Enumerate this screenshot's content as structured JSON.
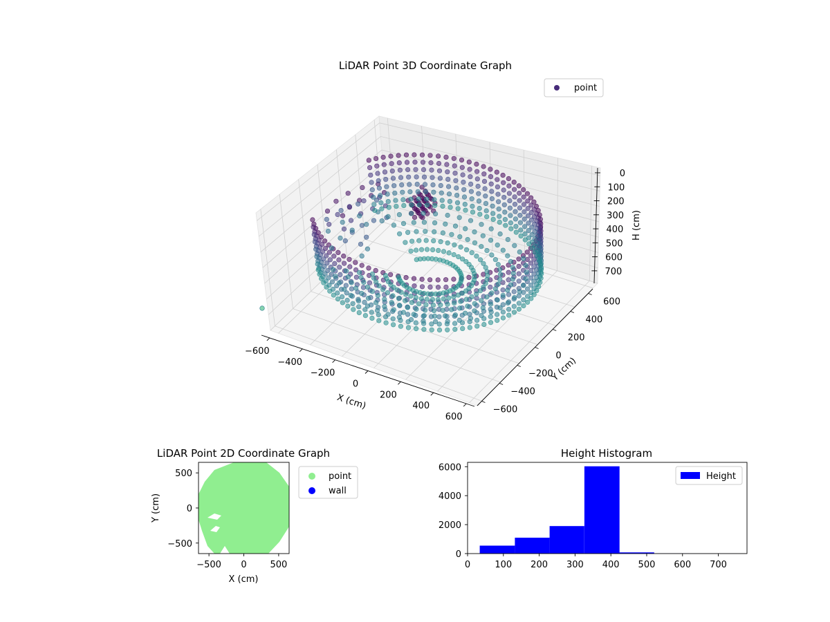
{
  "chart_data": [
    {
      "id": "lidar-3d",
      "type": "scatter",
      "title": "LiDAR Point 3D Coordinate Graph",
      "xlabel": "X (cm)",
      "ylabel": "Y (cm)",
      "zlabel": "H (cm)",
      "xlim": [
        -650,
        650
      ],
      "ylim": [
        -650,
        650
      ],
      "zlim": [
        0,
        750
      ],
      "z_inverted": true,
      "x_ticks": [
        "−600",
        "−400",
        "−200",
        "0",
        "200",
        "400",
        "600"
      ],
      "y_ticks": [
        "−600",
        "−400",
        "−200",
        "0",
        "200",
        "400",
        "600"
      ],
      "z_ticks": [
        "0",
        "100",
        "200",
        "300",
        "400",
        "500",
        "600",
        "700"
      ],
      "x_tick_values": [
        -600,
        -400,
        -200,
        0,
        200,
        400,
        600
      ],
      "y_tick_values": [
        -600,
        -400,
        -200,
        0,
        200,
        400,
        600
      ],
      "z_tick_values": [
        0,
        100,
        200,
        300,
        400,
        500,
        600,
        700
      ],
      "legend": [
        "point"
      ],
      "legend_loc": "upper-right",
      "grid": true,
      "colormap": "viridis",
      "series": [
        {
          "name": "point",
          "shape": "ring",
          "radius": 600,
          "height_range": [
            100,
            450
          ],
          "gap_on_left": true
        }
      ]
    },
    {
      "id": "lidar-2d",
      "type": "scatter",
      "title": "LiDAR Point 2D Coordinate Graph",
      "xlabel": "X (cm)",
      "ylabel": "Y (cm)",
      "xlim": [
        -650,
        650
      ],
      "ylim": [
        -650,
        650
      ],
      "x_ticks": [
        "−500",
        "0",
        "500"
      ],
      "y_ticks": [
        "500",
        "0",
        "−500"
      ],
      "x_tick_values": [
        -500,
        0,
        500
      ],
      "y_tick_values": [
        500,
        0,
        -500
      ],
      "legend": [
        "point",
        "wall"
      ],
      "legend_loc": "outside-right",
      "series": [
        {
          "name": "point",
          "color": "#90ee90",
          "shape": "filled-disc",
          "radius": 620
        },
        {
          "name": "wall",
          "color": "#0000ff",
          "points": []
        }
      ]
    },
    {
      "id": "height-hist",
      "type": "bar",
      "title": "Height Histogram",
      "xlim": [
        0,
        780
      ],
      "ylim": [
        0,
        6300
      ],
      "x_ticks": [
        "0",
        "100",
        "200",
        "300",
        "400",
        "500",
        "600",
        "700"
      ],
      "y_ticks": [
        "0",
        "2000",
        "4000",
        "6000"
      ],
      "x_tick_values": [
        0,
        100,
        200,
        300,
        400,
        500,
        600,
        700
      ],
      "y_tick_values": [
        0,
        2000,
        4000,
        6000
      ],
      "legend": [
        "Height"
      ],
      "legend_loc": "upper-right",
      "color": "#0000ff",
      "series": [
        {
          "name": "Height",
          "bin_edges": [
            34,
            132,
            229,
            326,
            424,
            521,
            618,
            715,
            750
          ],
          "counts": [
            550,
            1100,
            1900,
            6030,
            80,
            10,
            5,
            5
          ]
        }
      ]
    }
  ]
}
